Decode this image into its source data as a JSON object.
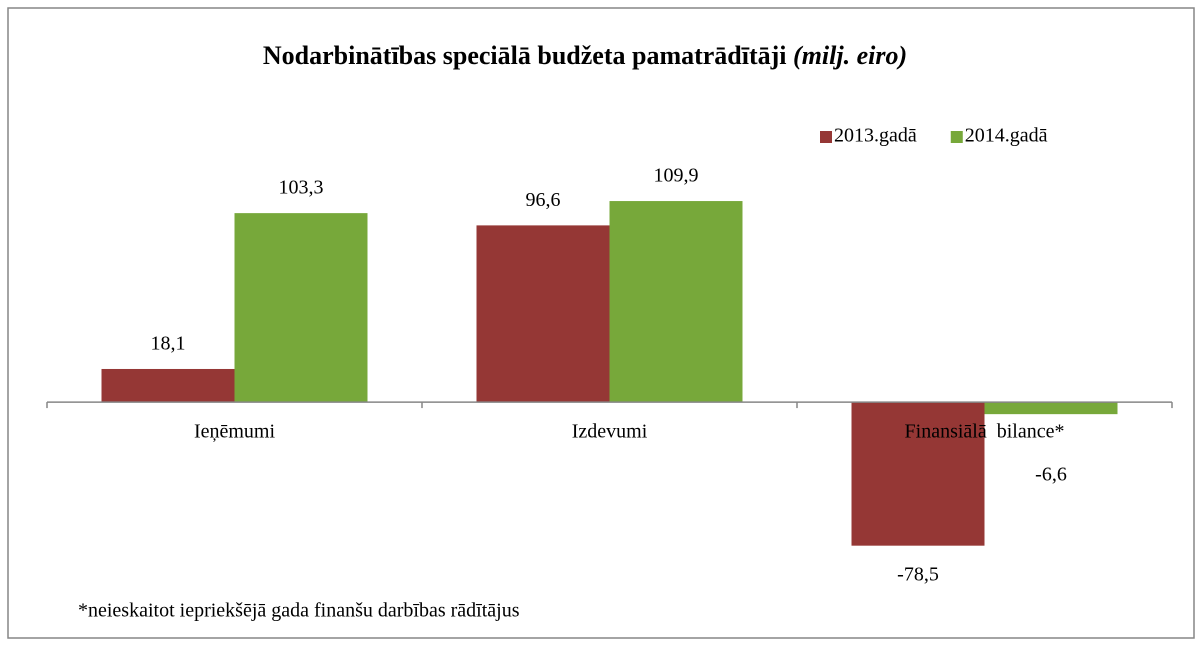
{
  "chart_data": {
    "type": "bar",
    "title": "Nodarbinātības speciālā budžeta pamatrādītāji",
    "title_unit": "(milj. eiro)",
    "categories": [
      "Ieņēmumi",
      "Izdevumi",
      "Finansiālā  bilance*"
    ],
    "series": [
      {
        "name": "2013.gadā",
        "color": "#953735",
        "values": [
          18.1,
          96.6,
          -78.5
        ],
        "value_labels": [
          "18,1",
          "96,6",
          "-78,5"
        ]
      },
      {
        "name": "2014.gadā",
        "color": "#77a83a",
        "values": [
          103.3,
          109.9,
          -6.6
        ],
        "value_labels": [
          "103,3",
          "109,9",
          "-6,6"
        ]
      }
    ],
    "ylim": [
      -100,
      140
    ],
    "legend": "top-right",
    "footnote": "*neieskaitot iepriekšējā gada finanšu darbības rādītājus"
  }
}
